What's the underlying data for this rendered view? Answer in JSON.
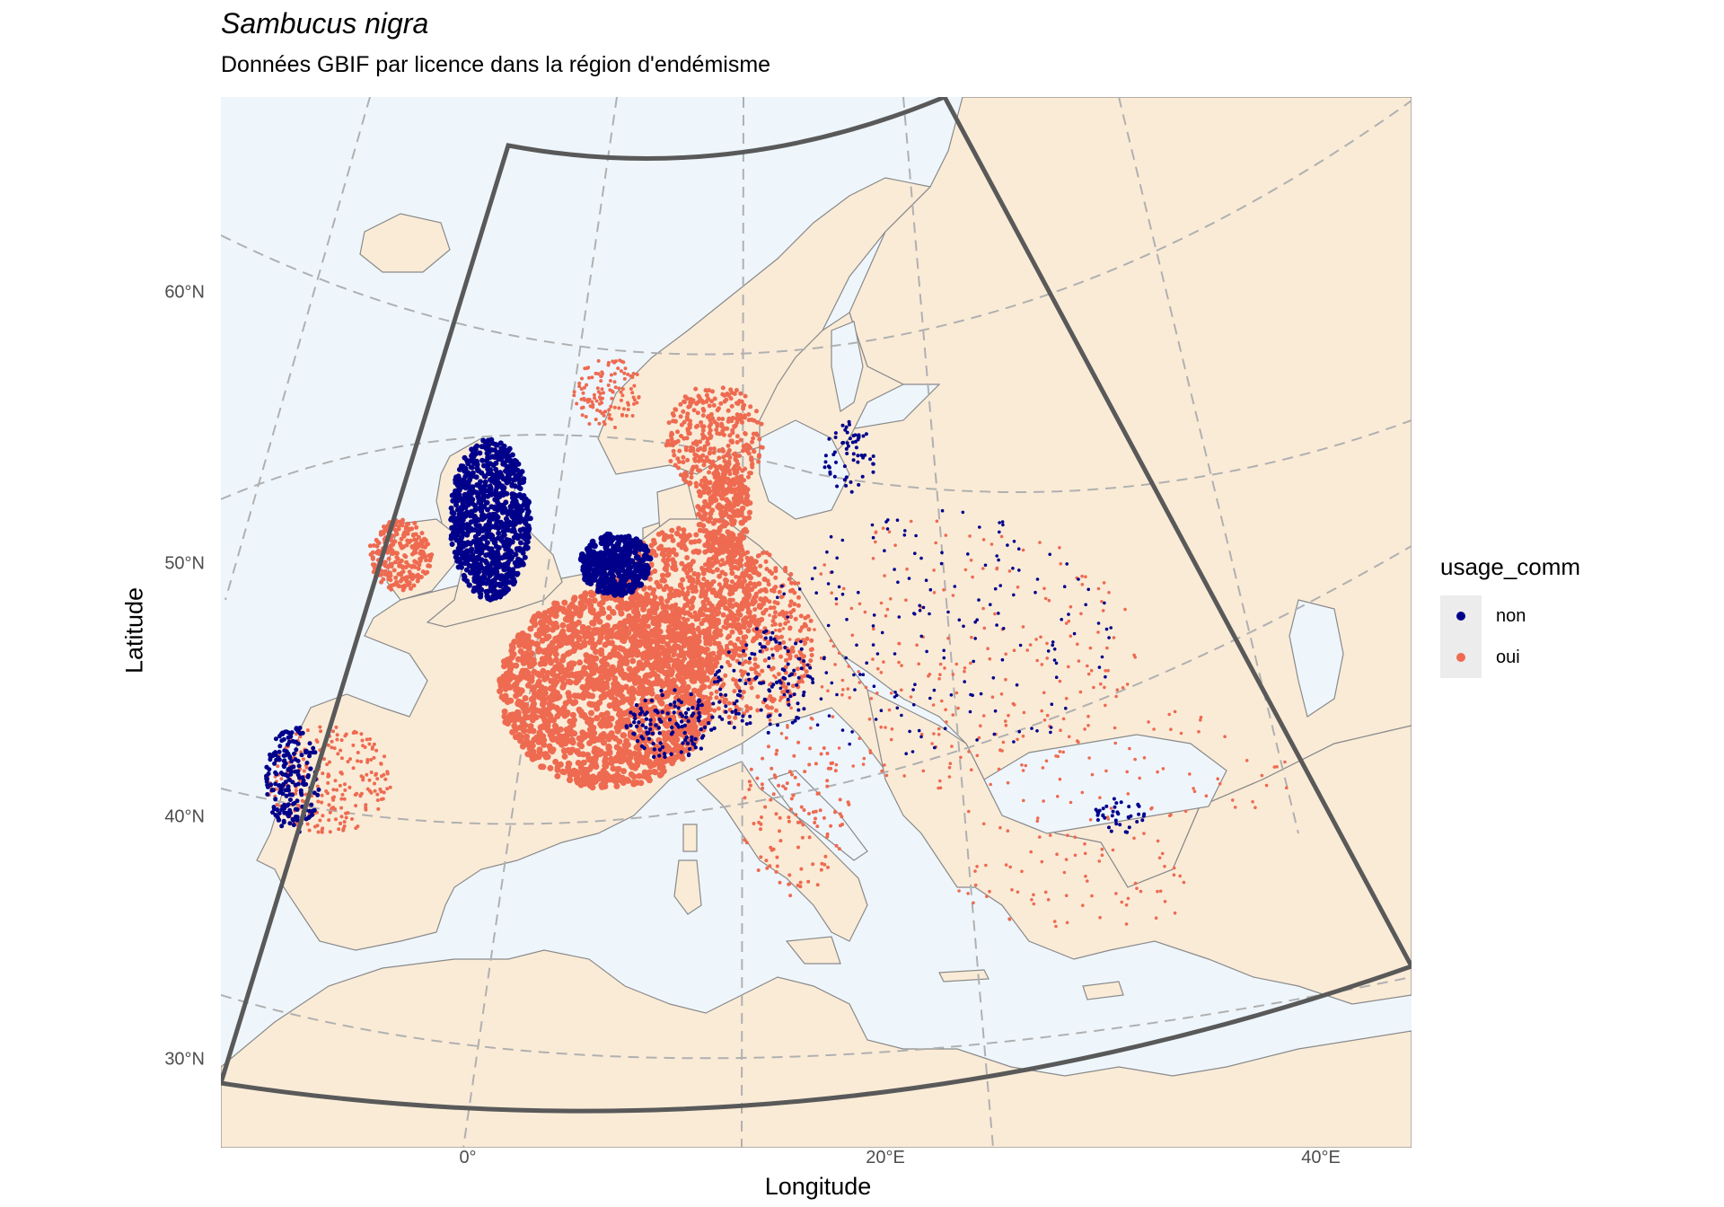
{
  "title": "Sambucus nigra",
  "subtitle": "Données GBIF par licence dans la région d'endémisme",
  "x_axis_title": "Longitude",
  "y_axis_title": "Latitude",
  "y_ticks": [
    "60°N",
    "50°N",
    "40°N",
    "30°N"
  ],
  "x_ticks": [
    "0°",
    "20°E",
    "40°E"
  ],
  "legend": {
    "title": "usage_comm",
    "items": [
      {
        "label": "non",
        "color": "#00008B"
      },
      {
        "label": "oui",
        "color": "#EE6A50"
      }
    ]
  },
  "colors": {
    "sea": "#EEF6FC",
    "land": "#FAEBD7",
    "border": "#8a8a8a",
    "graticule": "#b0b0b0",
    "region_outline": "#595959"
  }
}
